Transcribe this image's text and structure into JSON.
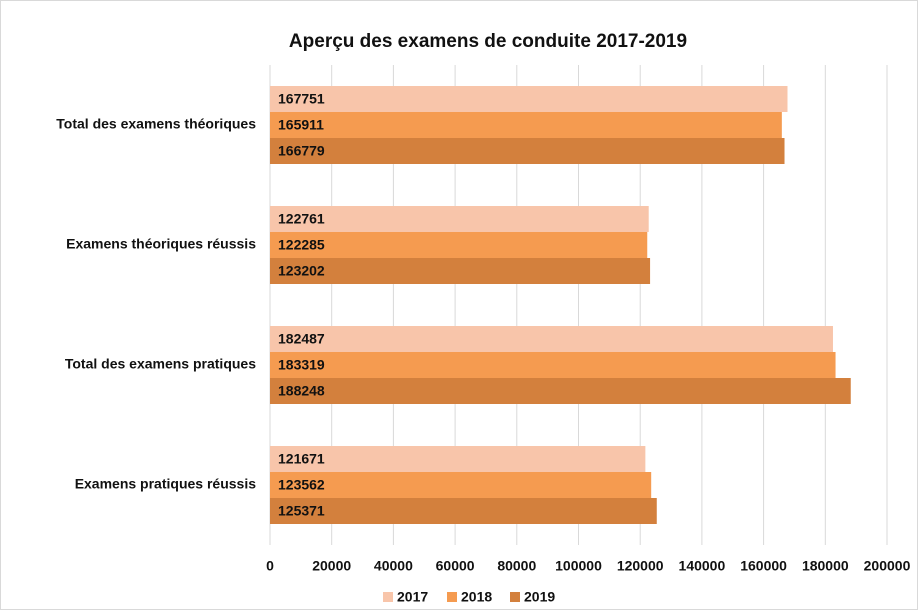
{
  "chart_data": {
    "type": "bar",
    "orientation": "horizontal",
    "title": "Aperçu des examens de conduite 2017-2019",
    "categories": [
      "Total des examens théoriques",
      "Examens théoriques réussis",
      "Total des examens pratiques",
      "Examens pratiques réussis"
    ],
    "series": [
      {
        "name": "2017",
        "color": "#f8c5aa",
        "values": [
          167751,
          122761,
          182487,
          121671
        ]
      },
      {
        "name": "2018",
        "color": "#f59b50",
        "values": [
          165911,
          122285,
          183319,
          123562
        ]
      },
      {
        "name": "2019",
        "color": "#d3803d",
        "values": [
          166779,
          123202,
          188248,
          125371
        ]
      }
    ],
    "xlim": [
      0,
      200000
    ],
    "xticks": [
      0,
      20000,
      40000,
      60000,
      80000,
      100000,
      120000,
      140000,
      160000,
      180000,
      200000
    ],
    "grid": true,
    "legend": "bottom",
    "data_labels": true
  }
}
